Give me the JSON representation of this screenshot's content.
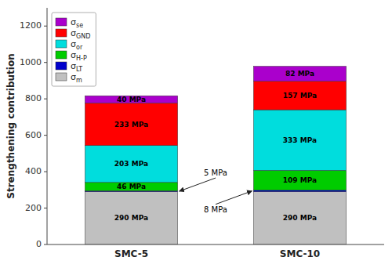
{
  "chart_data": {
    "type": "bar",
    "stacked": true,
    "data_labels": true,
    "legend": "upper left",
    "ylabel": "Strengthening contribution",
    "categories": [
      "SMC-5",
      "SMC-10"
    ],
    "series": [
      {
        "name": "σm",
        "color": "#c0c0c0",
        "values": [
          290,
          290
        ],
        "value_labels": [
          "290 MPa",
          "290 MPa"
        ]
      },
      {
        "name": "σLT",
        "color": "#0000cc",
        "values": [
          5,
          8
        ],
        "value_labels": [
          "5 MPa",
          "8 MPa"
        ]
      },
      {
        "name": "σH-P",
        "color": "#00cc00",
        "values": [
          46,
          109
        ],
        "value_labels": [
          "46 MPa",
          "109 MPa"
        ]
      },
      {
        "name": "σor",
        "color": "#00dddd",
        "values": [
          203,
          333
        ],
        "value_labels": [
          "203 MPa",
          "333 MPa"
        ]
      },
      {
        "name": "σGND",
        "color": "#ff0000",
        "values": [
          233,
          157
        ],
        "value_labels": [
          "233 MPa",
          "157 MPa"
        ]
      },
      {
        "name": "σse",
        "color": "#aa00cc",
        "values": [
          40,
          82
        ],
        "value_labels": [
          "40 MPa",
          "82 MPa"
        ]
      }
    ],
    "ylim": [
      0,
      1300
    ],
    "yticks": [
      0,
      200,
      400,
      600,
      800,
      1000,
      1200
    ]
  }
}
